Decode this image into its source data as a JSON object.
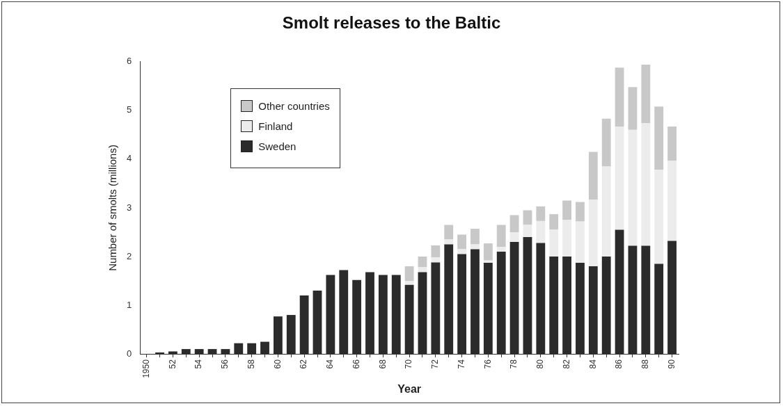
{
  "chart_data": {
    "type": "bar",
    "title": "Smolt releases to the Baltic",
    "xlabel": "Year",
    "ylabel": "Number of smolts (millions)",
    "categories": [
      "1950",
      null,
      "52",
      null,
      "54",
      null,
      "56",
      null,
      "58",
      null,
      "60",
      null,
      "62",
      null,
      "64",
      null,
      "66",
      null,
      "68",
      null,
      "70",
      null,
      "72",
      null,
      "74",
      null,
      "76",
      null,
      "78",
      null,
      "80",
      null,
      "82",
      null,
      "84",
      null,
      "86",
      null,
      "88",
      null,
      "90"
    ],
    "stacked": true,
    "series": [
      {
        "name": "Sweden",
        "color": "#2b2b2b",
        "values": [
          0,
          0.03,
          0.05,
          0.1,
          0.1,
          0.1,
          0.1,
          0.22,
          0.22,
          0.25,
          0.77,
          0.8,
          1.2,
          1.3,
          1.62,
          1.72,
          1.52,
          1.68,
          1.62,
          1.62,
          1.42,
          1.68,
          1.88,
          2.25,
          2.05,
          2.15,
          1.87,
          2.1,
          2.3,
          2.4,
          2.28,
          2.0,
          2.0,
          1.87,
          1.8,
          2.0,
          2.55,
          2.22,
          2.22,
          1.85,
          2.32
        ]
      },
      {
        "name": "Finland",
        "color": "#ececec",
        "values": [
          null,
          null,
          null,
          null,
          null,
          null,
          null,
          null,
          null,
          null,
          null,
          null,
          null,
          null,
          null,
          null,
          null,
          null,
          null,
          null,
          0.08,
          0.1,
          0.1,
          0.1,
          0.1,
          0.1,
          0.05,
          0.1,
          0.2,
          0.25,
          0.45,
          0.55,
          0.75,
          0.85,
          1.37,
          1.85,
          2.12,
          2.38,
          2.52,
          1.93,
          1.65
        ]
      },
      {
        "name": "Other countries",
        "color": "#c8c8c8",
        "values": [
          null,
          null,
          null,
          null,
          null,
          null,
          null,
          null,
          null,
          null,
          null,
          null,
          null,
          null,
          null,
          null,
          null,
          null,
          null,
          null,
          0.3,
          0.22,
          0.25,
          0.3,
          0.3,
          0.32,
          0.35,
          0.45,
          0.35,
          0.3,
          0.3,
          0.32,
          0.4,
          0.4,
          0.98,
          0.98,
          1.21,
          0.88,
          1.2,
          1.3,
          0.7
        ]
      }
    ],
    "ylim": [
      0,
      6
    ],
    "yticks": [
      0,
      1,
      2,
      3,
      4,
      5,
      6
    ],
    "grid": false,
    "legend": "top left"
  }
}
